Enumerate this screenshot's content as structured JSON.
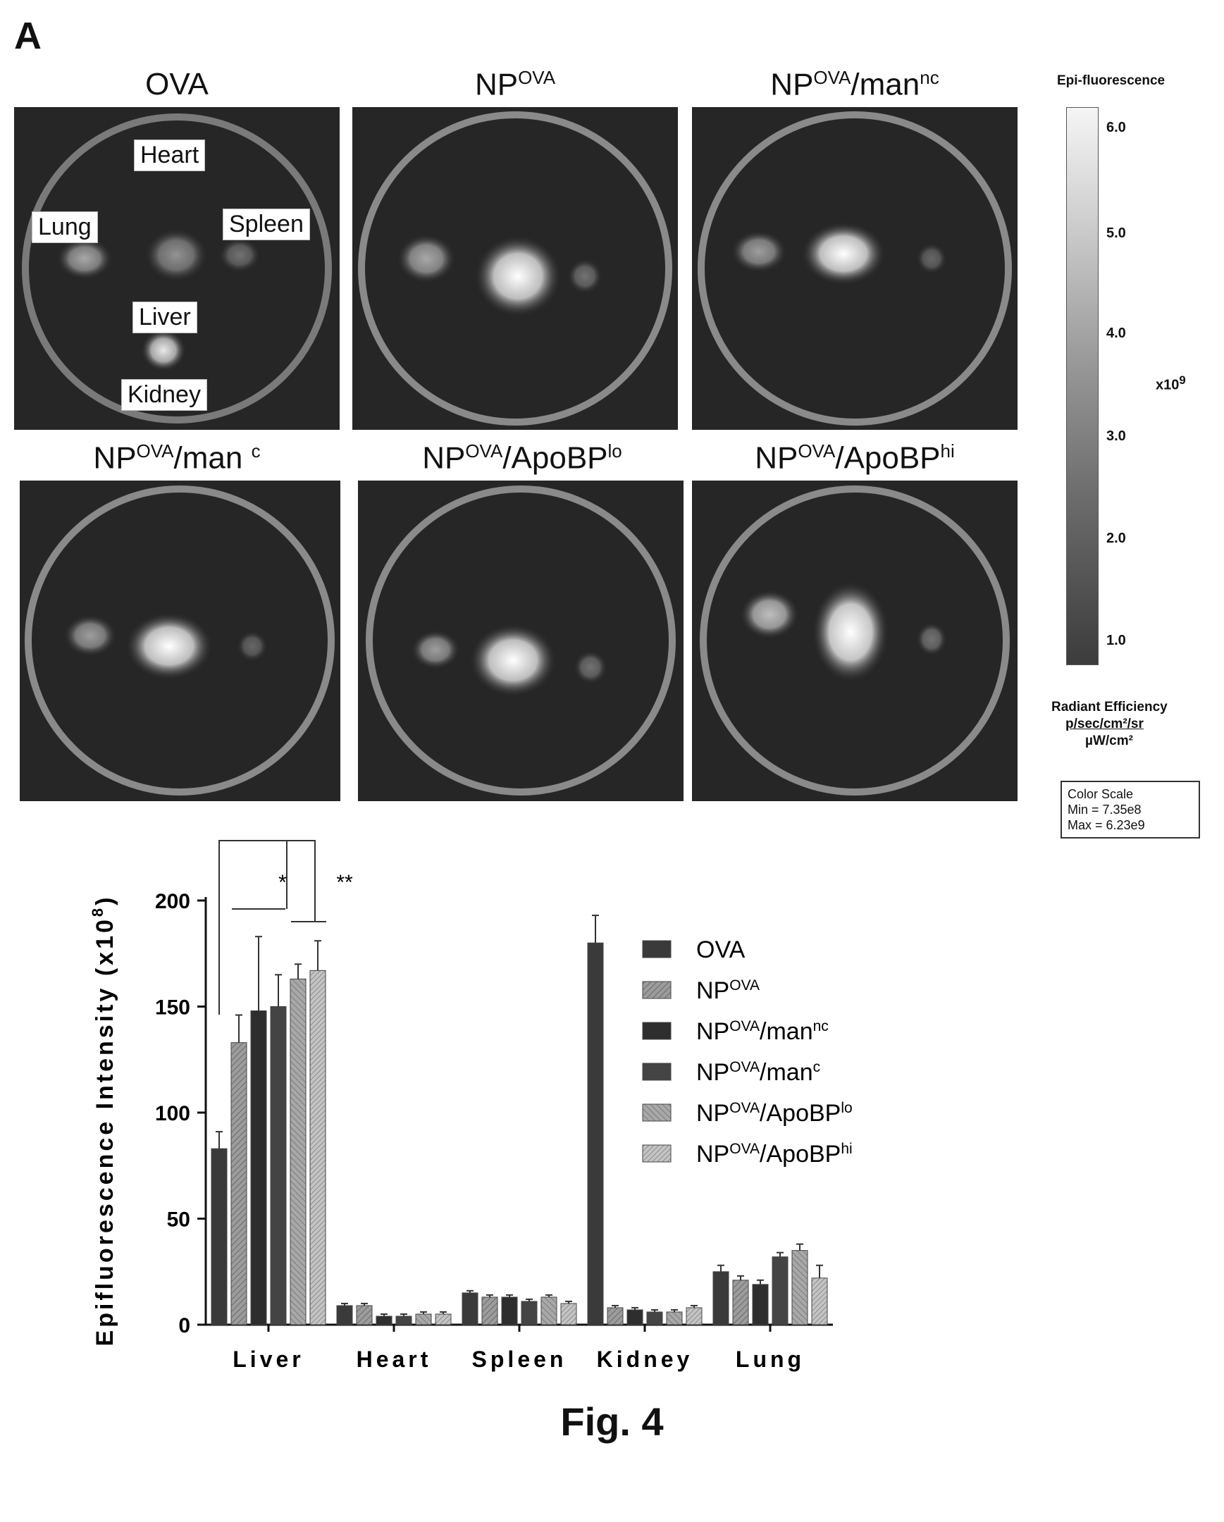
{
  "panel_label": "A",
  "figure_caption": "Fig. 4",
  "images": [
    {
      "title_main": "OVA",
      "title_sup": "",
      "title_suffix": "",
      "title_sup2": ""
    },
    {
      "title_main": "NP",
      "title_sup": "OVA",
      "title_suffix": "",
      "title_sup2": ""
    },
    {
      "title_main": "NP",
      "title_sup": "OVA",
      "title_suffix": "/man",
      "title_sup2": "nc"
    },
    {
      "title_main": "NP",
      "title_sup": "OVA",
      "title_suffix": "/man ",
      "title_sup2": "c"
    },
    {
      "title_main": "NP",
      "title_sup": "OVA",
      "title_suffix": "/ApoBP",
      "title_sup2": "lo"
    },
    {
      "title_main": "NP",
      "title_sup": "OVA",
      "title_suffix": "/ApoBP",
      "title_sup2": "hi"
    }
  ],
  "organ_labels": {
    "heart": "Heart",
    "lung": "Lung",
    "spleen": "Spleen",
    "liver": "Liver",
    "kidney": "Kidney"
  },
  "colorbar": {
    "title": "Epi-fluorescence",
    "ticks": [
      "6.0",
      "5.0",
      "4.0",
      "3.0",
      "2.0",
      "1.0"
    ],
    "multiplier": "x10",
    "multiplier_exp": "9",
    "radiant_efficiency": "Radiant Efficiency",
    "units_numerator": "p/sec/cm²/sr",
    "units_denominator": "µW/cm²",
    "color_scale_title": "Color Scale",
    "color_scale_min": "Min = 7.35e8",
    "color_scale_max": "Max = 6.23e9"
  },
  "chart_data": {
    "type": "bar",
    "ylabel": "Epifluorescence Intensity (x10",
    "ylabel_exp": "8",
    "ylabel_close": ")",
    "ylim": [
      0,
      200
    ],
    "yticks": [
      "0",
      "50",
      "100",
      "150",
      "200"
    ],
    "categories": [
      "Liver",
      "Heart",
      "Spleen",
      "Kidney",
      "Lung"
    ],
    "series": [
      {
        "name": "OVA",
        "name_main": "NP",
        "name_sup": "",
        "name_suffix": "",
        "name_sup2": "",
        "values": [
          83,
          9,
          15,
          180,
          25
        ],
        "errors": [
          8,
          1,
          1,
          13,
          3
        ]
      },
      {
        "name": "NP(OVA)",
        "name_main": "NP",
        "name_sup": "OVA",
        "name_suffix": "",
        "name_sup2": "",
        "values": [
          133,
          9,
          13,
          8,
          21
        ],
        "errors": [
          13,
          1,
          1,
          1,
          2
        ]
      },
      {
        "name": "NP(OVA)/man(nc)",
        "name_main": "NP",
        "name_sup": "OVA",
        "name_suffix": "/man",
        "name_sup2": "nc",
        "values": [
          148,
          4,
          13,
          7,
          19
        ],
        "errors": [
          35,
          1,
          1,
          1,
          2
        ]
      },
      {
        "name": "NP(OVA)/man(c)",
        "name_main": "NP",
        "name_sup": "OVA",
        "name_suffix": "/man",
        "name_sup2": "c",
        "values": [
          150,
          4,
          11,
          6,
          32
        ],
        "errors": [
          15,
          1,
          1,
          1,
          2
        ]
      },
      {
        "name": "NP(OVA)/ApoBP(lo)",
        "name_main": "NP",
        "name_sup": "OVA",
        "name_suffix": "/ApoBP",
        "name_sup2": "lo",
        "values": [
          163,
          5,
          13,
          6,
          35
        ],
        "errors": [
          7,
          1,
          1,
          1,
          3
        ]
      },
      {
        "name": "NP(OVA)/ApoBP(hi)",
        "name_main": "NP",
        "name_sup": "OVA",
        "name_suffix": "/ApoBP",
        "name_sup2": "hi",
        "values": [
          167,
          5,
          10,
          8,
          22
        ],
        "errors": [
          14,
          1,
          1,
          1,
          6
        ]
      }
    ],
    "significance": [
      "*",
      "**"
    ],
    "colors": [
      "#3a3a3a",
      "#8a8a8a",
      "#2e2e2e",
      "#444444",
      "#9a9a9a",
      "#b0b0b0"
    ]
  }
}
